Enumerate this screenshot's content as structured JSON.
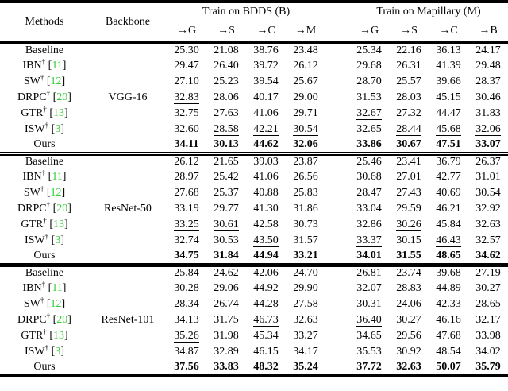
{
  "table": {
    "citation_color": "#32cd32",
    "header": {
      "methods_label": "Methods",
      "backbone_label": "Backbone",
      "groups": [
        {
          "title": "Train on BDDS (B)",
          "cols": [
            "→G",
            "→S",
            "→C",
            "→M"
          ]
        },
        {
          "title": "Train on Mapillary (M)",
          "cols": [
            "→G",
            "→S",
            "→C",
            "→B"
          ]
        }
      ]
    },
    "blocks": [
      {
        "backbone": "VGG-16",
        "rows": [
          {
            "method": "Baseline",
            "dagger": false,
            "cite": "",
            "bold": false,
            "bdds": [
              "25.30",
              "21.08",
              "38.76",
              "23.48"
            ],
            "u_bdds": [],
            "map": [
              "25.34",
              "22.16",
              "36.13",
              "24.17"
            ],
            "u_map": []
          },
          {
            "method": "IBN",
            "dagger": true,
            "cite": "11",
            "bold": false,
            "bdds": [
              "29.47",
              "26.40",
              "39.72",
              "26.12"
            ],
            "u_bdds": [],
            "map": [
              "29.68",
              "26.31",
              "41.39",
              "29.48"
            ],
            "u_map": []
          },
          {
            "method": "SW",
            "dagger": true,
            "cite": "12",
            "bold": false,
            "bdds": [
              "27.10",
              "25.23",
              "39.54",
              "25.67"
            ],
            "u_bdds": [],
            "map": [
              "28.70",
              "25.57",
              "39.66",
              "28.37"
            ],
            "u_map": []
          },
          {
            "method": "DRPC",
            "dagger": true,
            "cite": "20",
            "bold": false,
            "bdds": [
              "32.83",
              "28.06",
              "40.17",
              "29.00"
            ],
            "u_bdds": [
              0
            ],
            "map": [
              "31.53",
              "28.03",
              "45.15",
              "30.46"
            ],
            "u_map": []
          },
          {
            "method": "GTR",
            "dagger": true,
            "cite": "13",
            "bold": false,
            "bdds": [
              "32.75",
              "27.63",
              "41.06",
              "29.71"
            ],
            "u_bdds": [],
            "map": [
              "32.67",
              "27.32",
              "44.47",
              "31.83"
            ],
            "u_map": [
              0
            ]
          },
          {
            "method": "ISW",
            "dagger": true,
            "cite": "3",
            "bold": false,
            "bdds": [
              "32.60",
              "28.58",
              "42.21",
              "30.54"
            ],
            "u_bdds": [
              1,
              2,
              3
            ],
            "map": [
              "32.65",
              "28.44",
              "45.68",
              "32.06"
            ],
            "u_map": [
              1,
              2,
              3
            ]
          },
          {
            "method": "Ours",
            "dagger": false,
            "cite": "",
            "bold": true,
            "bdds": [
              "34.11",
              "30.13",
              "44.62",
              "32.06"
            ],
            "u_bdds": [],
            "map": [
              "33.86",
              "30.67",
              "47.51",
              "33.07"
            ],
            "u_map": []
          }
        ]
      },
      {
        "backbone": "ResNet-50",
        "rows": [
          {
            "method": "Baseline",
            "dagger": false,
            "cite": "",
            "bold": false,
            "bdds": [
              "26.12",
              "21.65",
              "39.03",
              "23.87"
            ],
            "u_bdds": [],
            "map": [
              "25.46",
              "23.41",
              "36.79",
              "26.37"
            ],
            "u_map": []
          },
          {
            "method": "IBN",
            "dagger": true,
            "cite": "11",
            "bold": false,
            "bdds": [
              "28.97",
              "25.42",
              "41.06",
              "26.56"
            ],
            "u_bdds": [],
            "map": [
              "30.68",
              "27.01",
              "42.77",
              "31.01"
            ],
            "u_map": []
          },
          {
            "method": "SW",
            "dagger": true,
            "cite": "12",
            "bold": false,
            "bdds": [
              "27.68",
              "25.37",
              "40.88",
              "25.83"
            ],
            "u_bdds": [],
            "map": [
              "28.47",
              "27.43",
              "40.69",
              "30.54"
            ],
            "u_map": []
          },
          {
            "method": "DRPC",
            "dagger": true,
            "cite": "20",
            "bold": false,
            "bdds": [
              "33.19",
              "29.77",
              "41.30",
              "31.86"
            ],
            "u_bdds": [
              3
            ],
            "map": [
              "33.04",
              "29.59",
              "46.21",
              "32.92"
            ],
            "u_map": [
              3
            ]
          },
          {
            "method": "GTR",
            "dagger": true,
            "cite": "13",
            "bold": false,
            "bdds": [
              "33.25",
              "30.61",
              "42.58",
              "30.73"
            ],
            "u_bdds": [
              0,
              1
            ],
            "map": [
              "32.86",
              "30.26",
              "45.84",
              "32.63"
            ],
            "u_map": [
              1
            ]
          },
          {
            "method": "ISW",
            "dagger": true,
            "cite": "3",
            "bold": false,
            "bdds": [
              "32.74",
              "30.53",
              "43.50",
              "31.57"
            ],
            "u_bdds": [
              2
            ],
            "map": [
              "33.37",
              "30.15",
              "46.43",
              "32.57"
            ],
            "u_map": [
              0,
              2
            ]
          },
          {
            "method": "Ours",
            "dagger": false,
            "cite": "",
            "bold": true,
            "bdds": [
              "34.75",
              "31.84",
              "44.94",
              "33.21"
            ],
            "u_bdds": [],
            "map": [
              "34.01",
              "31.55",
              "48.65",
              "34.62"
            ],
            "u_map": []
          }
        ]
      },
      {
        "backbone": "ResNet-101",
        "rows": [
          {
            "method": "Baseline",
            "dagger": false,
            "cite": "",
            "bold": false,
            "bdds": [
              "25.84",
              "24.62",
              "42.06",
              "24.70"
            ],
            "u_bdds": [],
            "map": [
              "26.81",
              "23.74",
              "39.68",
              "27.19"
            ],
            "u_map": []
          },
          {
            "method": "IBN",
            "dagger": true,
            "cite": "11",
            "bold": false,
            "bdds": [
              "30.28",
              "29.06",
              "44.92",
              "29.90"
            ],
            "u_bdds": [],
            "map": [
              "32.07",
              "28.83",
              "44.89",
              "30.27"
            ],
            "u_map": []
          },
          {
            "method": "SW",
            "dagger": true,
            "cite": "12",
            "bold": false,
            "bdds": [
              "28.34",
              "26.74",
              "44.28",
              "27.58"
            ],
            "u_bdds": [],
            "map": [
              "30.31",
              "24.06",
              "42.33",
              "28.65"
            ],
            "u_map": []
          },
          {
            "method": "DRPC",
            "dagger": true,
            "cite": "20",
            "bold": false,
            "bdds": [
              "34.13",
              "31.75",
              "46.73",
              "32.63"
            ],
            "u_bdds": [
              2
            ],
            "map": [
              "36.40",
              "30.27",
              "46.16",
              "32.17"
            ],
            "u_map": [
              0
            ]
          },
          {
            "method": "GTR",
            "dagger": true,
            "cite": "13",
            "bold": false,
            "bdds": [
              "35.26",
              "31.98",
              "45.34",
              "33.27"
            ],
            "u_bdds": [
              0
            ],
            "map": [
              "34.65",
              "29.56",
              "47.68",
              "33.98"
            ],
            "u_map": []
          },
          {
            "method": "ISW",
            "dagger": true,
            "cite": "3",
            "bold": false,
            "bdds": [
              "34.87",
              "32.89",
              "46.15",
              "34.17"
            ],
            "u_bdds": [
              1,
              3
            ],
            "map": [
              "35.53",
              "30.92",
              "48.54",
              "34.02"
            ],
            "u_map": [
              1,
              2,
              3
            ]
          },
          {
            "method": "Ours",
            "dagger": false,
            "cite": "",
            "bold": true,
            "bdds": [
              "37.56",
              "33.83",
              "48.32",
              "35.24"
            ],
            "u_bdds": [],
            "map": [
              "37.72",
              "32.63",
              "50.07",
              "35.79"
            ],
            "u_map": []
          }
        ]
      }
    ]
  }
}
